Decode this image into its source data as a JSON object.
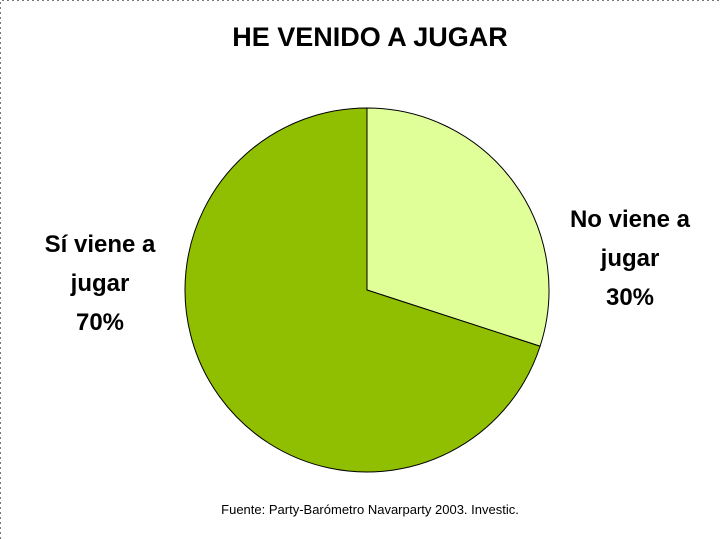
{
  "chart_data": {
    "type": "pie",
    "title": "HE VENIDO A JUGAR",
    "categories": [
      "No viene a jugar",
      "Sí viene a jugar"
    ],
    "values": [
      30,
      70
    ],
    "value_labels": [
      "30%",
      "70%"
    ],
    "colors": [
      "#e0ff99",
      "#8fbf00"
    ],
    "source": "Fuente: Party-Barómetro Navarparty 2003. Investic."
  }
}
